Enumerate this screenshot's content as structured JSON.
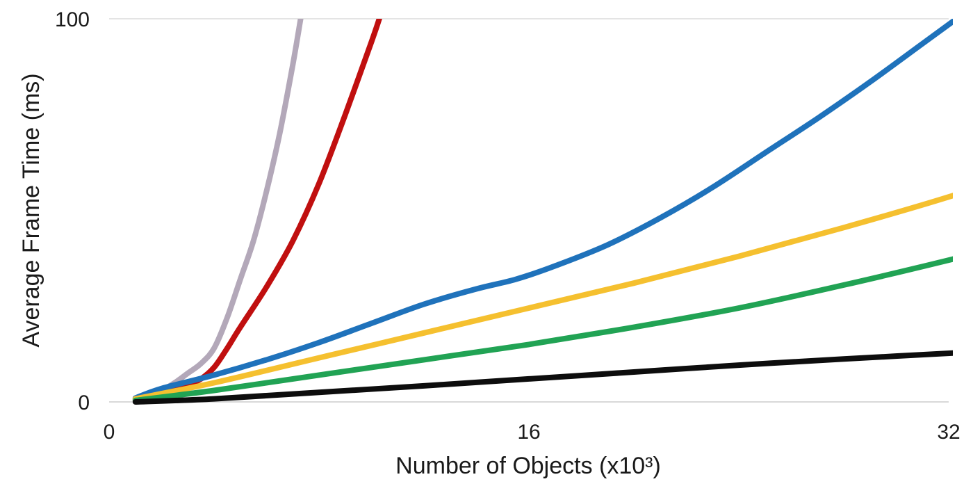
{
  "chart_data": {
    "type": "line",
    "title": "",
    "xlabel": "Number of Objects (x10³)",
    "ylabel": "Average Frame Time (ms)",
    "xlim": [
      0,
      32
    ],
    "ylim": [
      0,
      100
    ],
    "x_ticks": [
      0,
      16,
      32
    ],
    "y_ticks": [
      0,
      100
    ],
    "grid": true,
    "legend": "none",
    "series": [
      {
        "color": "#b3a8b9",
        "points": [
          [
            1,
            0.8
          ],
          [
            1.5,
            1.8
          ],
          [
            2,
            3
          ],
          [
            2.5,
            5
          ],
          [
            3,
            7.5
          ],
          [
            3.5,
            10
          ],
          [
            4,
            14
          ],
          [
            4.5,
            22
          ],
          [
            5,
            32
          ],
          [
            5.5,
            42
          ],
          [
            6,
            55
          ],
          [
            6.5,
            70
          ],
          [
            7,
            88
          ],
          [
            7.3,
            100
          ]
        ]
      },
      {
        "color": "#c00f0f",
        "points": [
          [
            1,
            0.5
          ],
          [
            2,
            2
          ],
          [
            3,
            4.5
          ],
          [
            3.5,
            6
          ],
          [
            4,
            9
          ],
          [
            4.5,
            14
          ],
          [
            5,
            19.5
          ],
          [
            6,
            30
          ],
          [
            7,
            42
          ],
          [
            8,
            57
          ],
          [
            9,
            75
          ],
          [
            10,
            94
          ],
          [
            10.3,
            100
          ]
        ]
      },
      {
        "color": "#1f72bb",
        "points": [
          [
            1,
            1
          ],
          [
            2,
            3.5
          ],
          [
            4,
            7
          ],
          [
            6,
            11
          ],
          [
            8,
            15.5
          ],
          [
            10,
            20.5
          ],
          [
            12,
            25.5
          ],
          [
            14,
            29.5
          ],
          [
            15.5,
            32
          ],
          [
            17,
            35.5
          ],
          [
            19,
            41
          ],
          [
            21,
            48
          ],
          [
            23,
            56
          ],
          [
            25,
            65
          ],
          [
            27,
            74
          ],
          [
            29,
            83.5
          ],
          [
            31,
            93.5
          ],
          [
            32.3,
            100
          ]
        ]
      },
      {
        "color": "#f5c02f",
        "points": [
          [
            1,
            0.8
          ],
          [
            4,
            5
          ],
          [
            8,
            11.5
          ],
          [
            12,
            18
          ],
          [
            16,
            24.5
          ],
          [
            20,
            31
          ],
          [
            24,
            38
          ],
          [
            28,
            45.5
          ],
          [
            32,
            53.5
          ],
          [
            32.8,
            55.7
          ]
        ]
      },
      {
        "color": "#21a354",
        "points": [
          [
            1,
            0.4
          ],
          [
            4,
            3
          ],
          [
            8,
            7
          ],
          [
            12,
            11
          ],
          [
            16,
            15
          ],
          [
            20,
            19.5
          ],
          [
            24,
            24.5
          ],
          [
            28,
            30.5
          ],
          [
            32,
            37
          ],
          [
            32.8,
            38.5
          ]
        ]
      },
      {
        "color": "#0d0d0d",
        "points": [
          [
            1,
            0
          ],
          [
            4,
            0.8
          ],
          [
            8,
            2.5
          ],
          [
            12,
            4.2
          ],
          [
            16,
            6
          ],
          [
            20,
            7.8
          ],
          [
            24,
            9.6
          ],
          [
            28,
            11.2
          ],
          [
            32.8,
            13
          ]
        ]
      }
    ]
  }
}
